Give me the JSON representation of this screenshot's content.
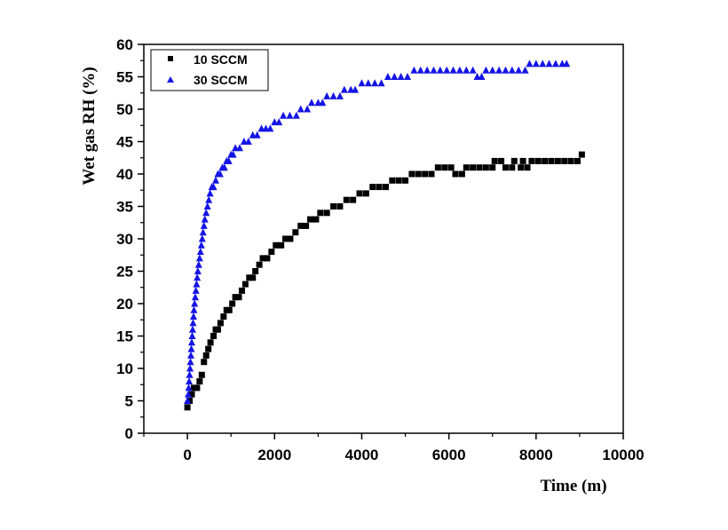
{
  "chart_data": {
    "type": "scatter",
    "xlabel": "Time (m)",
    "ylabel": "Wet gas RH (%)",
    "xlim": [
      -1000,
      10000
    ],
    "ylim": [
      0,
      60
    ],
    "xticks": [
      "0",
      "2000",
      "4000",
      "6000",
      "8000",
      "10000"
    ],
    "yticks": [
      "0",
      "5",
      "10",
      "15",
      "20",
      "25",
      "30",
      "35",
      "40",
      "45",
      "50",
      "55",
      "60"
    ],
    "legend_position": "top-left",
    "series": [
      {
        "name": "10 SCCM",
        "marker": "square",
        "color": "#000000",
        "points": [
          [
            0,
            4
          ],
          [
            50,
            5
          ],
          [
            100,
            6
          ],
          [
            150,
            7
          ],
          [
            220,
            7
          ],
          [
            280,
            8
          ],
          [
            330,
            9
          ],
          [
            380,
            11
          ],
          [
            430,
            12
          ],
          [
            480,
            13
          ],
          [
            530,
            14
          ],
          [
            600,
            15
          ],
          [
            650,
            16
          ],
          [
            700,
            16
          ],
          [
            760,
            17
          ],
          [
            830,
            18
          ],
          [
            900,
            19
          ],
          [
            960,
            19
          ],
          [
            1030,
            20
          ],
          [
            1100,
            21
          ],
          [
            1180,
            21
          ],
          [
            1250,
            22
          ],
          [
            1330,
            23
          ],
          [
            1420,
            24
          ],
          [
            1500,
            24
          ],
          [
            1560,
            25
          ],
          [
            1650,
            26
          ],
          [
            1730,
            27
          ],
          [
            1830,
            27
          ],
          [
            1930,
            28
          ],
          [
            2030,
            29
          ],
          [
            2150,
            29
          ],
          [
            2250,
            30
          ],
          [
            2360,
            30
          ],
          [
            2480,
            31
          ],
          [
            2600,
            32
          ],
          [
            2720,
            32
          ],
          [
            2820,
            33
          ],
          [
            2950,
            33
          ],
          [
            3050,
            34
          ],
          [
            3200,
            34
          ],
          [
            3350,
            35
          ],
          [
            3500,
            35
          ],
          [
            3650,
            36
          ],
          [
            3800,
            36
          ],
          [
            3950,
            37
          ],
          [
            4100,
            37
          ],
          [
            4250,
            38
          ],
          [
            4400,
            38
          ],
          [
            4550,
            38
          ],
          [
            4700,
            39
          ],
          [
            4850,
            39
          ],
          [
            5000,
            39
          ],
          [
            5150,
            40
          ],
          [
            5300,
            40
          ],
          [
            5450,
            40
          ],
          [
            5600,
            40
          ],
          [
            5750,
            41
          ],
          [
            5900,
            41
          ],
          [
            6050,
            41
          ],
          [
            6150,
            40
          ],
          [
            6300,
            40
          ],
          [
            6400,
            41
          ],
          [
            6550,
            41
          ],
          [
            6700,
            41
          ],
          [
            6850,
            41
          ],
          [
            7000,
            41
          ],
          [
            7050,
            42
          ],
          [
            7200,
            42
          ],
          [
            7300,
            41
          ],
          [
            7450,
            41
          ],
          [
            7500,
            42
          ],
          [
            7650,
            41
          ],
          [
            7700,
            42
          ],
          [
            7800,
            41
          ],
          [
            7900,
            42
          ],
          [
            8050,
            42
          ],
          [
            8200,
            42
          ],
          [
            8350,
            42
          ],
          [
            8500,
            42
          ],
          [
            8650,
            42
          ],
          [
            8800,
            42
          ],
          [
            8950,
            42
          ],
          [
            9050,
            43
          ]
        ]
      },
      {
        "name": "30 SCCM",
        "marker": "triangle",
        "color": "#1414e6",
        "points": [
          [
            0,
            5
          ],
          [
            20,
            6
          ],
          [
            30,
            7
          ],
          [
            40,
            8
          ],
          [
            50,
            9
          ],
          [
            60,
            10
          ],
          [
            70,
            11
          ],
          [
            80,
            12
          ],
          [
            90,
            13
          ],
          [
            100,
            14
          ],
          [
            110,
            15
          ],
          [
            120,
            16
          ],
          [
            130,
            17
          ],
          [
            140,
            18
          ],
          [
            150,
            19
          ],
          [
            165,
            20
          ],
          [
            180,
            21
          ],
          [
            195,
            22
          ],
          [
            210,
            23
          ],
          [
            225,
            24
          ],
          [
            240,
            25
          ],
          [
            260,
            26
          ],
          [
            280,
            27
          ],
          [
            300,
            28
          ],
          [
            320,
            29
          ],
          [
            340,
            30
          ],
          [
            360,
            31
          ],
          [
            380,
            32
          ],
          [
            400,
            33
          ],
          [
            430,
            34
          ],
          [
            460,
            35
          ],
          [
            490,
            36
          ],
          [
            520,
            37
          ],
          [
            560,
            38
          ],
          [
            600,
            38
          ],
          [
            650,
            39
          ],
          [
            700,
            40
          ],
          [
            750,
            40
          ],
          [
            800,
            41
          ],
          [
            850,
            41
          ],
          [
            900,
            42
          ],
          [
            950,
            42
          ],
          [
            1000,
            43
          ],
          [
            1050,
            43
          ],
          [
            1100,
            44
          ],
          [
            1200,
            44
          ],
          [
            1300,
            45
          ],
          [
            1400,
            45
          ],
          [
            1500,
            46
          ],
          [
            1600,
            46
          ],
          [
            1700,
            47
          ],
          [
            1800,
            47
          ],
          [
            1900,
            47
          ],
          [
            2000,
            48
          ],
          [
            2100,
            48
          ],
          [
            2200,
            49
          ],
          [
            2350,
            49
          ],
          [
            2500,
            49
          ],
          [
            2600,
            50
          ],
          [
            2750,
            50
          ],
          [
            2850,
            51
          ],
          [
            3000,
            51
          ],
          [
            3100,
            51
          ],
          [
            3200,
            52
          ],
          [
            3350,
            52
          ],
          [
            3500,
            52
          ],
          [
            3600,
            53
          ],
          [
            3750,
            53
          ],
          [
            3850,
            53
          ],
          [
            4000,
            54
          ],
          [
            4150,
            54
          ],
          [
            4300,
            54
          ],
          [
            4450,
            54
          ],
          [
            4600,
            55
          ],
          [
            4750,
            55
          ],
          [
            4900,
            55
          ],
          [
            5050,
            55
          ],
          [
            5200,
            56
          ],
          [
            5350,
            56
          ],
          [
            5500,
            56
          ],
          [
            5650,
            56
          ],
          [
            5800,
            56
          ],
          [
            5950,
            56
          ],
          [
            6100,
            56
          ],
          [
            6250,
            56
          ],
          [
            6400,
            56
          ],
          [
            6550,
            56
          ],
          [
            6650,
            55
          ],
          [
            6750,
            55
          ],
          [
            6850,
            56
          ],
          [
            7000,
            56
          ],
          [
            7150,
            56
          ],
          [
            7300,
            56
          ],
          [
            7450,
            56
          ],
          [
            7600,
            56
          ],
          [
            7750,
            56
          ],
          [
            7850,
            57
          ],
          [
            8000,
            57
          ],
          [
            8150,
            57
          ],
          [
            8300,
            57
          ],
          [
            8450,
            57
          ],
          [
            8600,
            57
          ],
          [
            8700,
            57
          ]
        ]
      }
    ]
  }
}
